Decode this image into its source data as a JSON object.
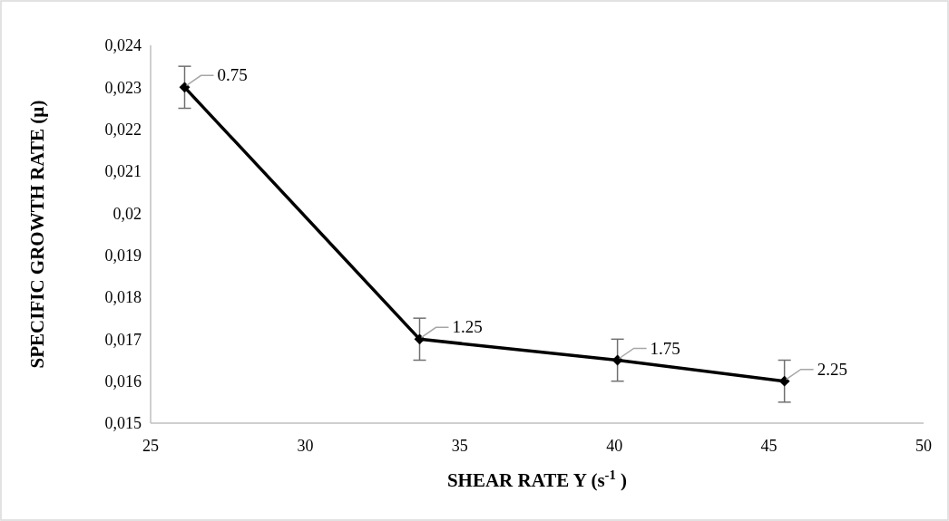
{
  "chart_data": {
    "type": "line",
    "xlabel": "SHEAR RATE Y (s$^{-1}$ )",
    "ylabel": "SPECIFIC GROWTH RATE (µ)",
    "x": [
      26.1,
      33.7,
      40.1,
      45.5
    ],
    "series": [
      {
        "color": "#000000",
        "values": [
          0.023,
          0.017,
          0.0165,
          0.016
        ],
        "errors": [
          0.0005,
          0.0005,
          0.0005,
          0.0005
        ]
      }
    ],
    "annotations": [
      {
        "text": "0.75",
        "x": 26.1,
        "y": 0.023
      },
      {
        "text": "1.25",
        "x": 33.7,
        "y": 0.017
      },
      {
        "text": "1.75",
        "x": 40.1,
        "y": 0.0165
      },
      {
        "text": "2.25",
        "x": 45.5,
        "y": 0.016
      }
    ],
    "xlim": [
      25,
      50
    ],
    "xticks": [
      25,
      30,
      35,
      40,
      45,
      50
    ],
    "ylim": [
      0.015,
      0.024
    ],
    "yticks": [
      {
        "value": 0.015,
        "label": "0,015"
      },
      {
        "value": 0.016,
        "label": "0,016"
      },
      {
        "value": 0.017,
        "label": "0,017"
      },
      {
        "value": 0.018,
        "label": "0,018"
      },
      {
        "value": 0.019,
        "label": "0,019"
      },
      {
        "value": 0.02,
        "label": "0,02"
      },
      {
        "value": 0.021,
        "label": "0,021"
      },
      {
        "value": 0.022,
        "label": "0,022"
      },
      {
        "value": 0.023,
        "label": "0,023"
      },
      {
        "value": 0.024,
        "label": "0,024"
      }
    ],
    "grid": false,
    "marker": "diamond",
    "line_style": "solid"
  }
}
